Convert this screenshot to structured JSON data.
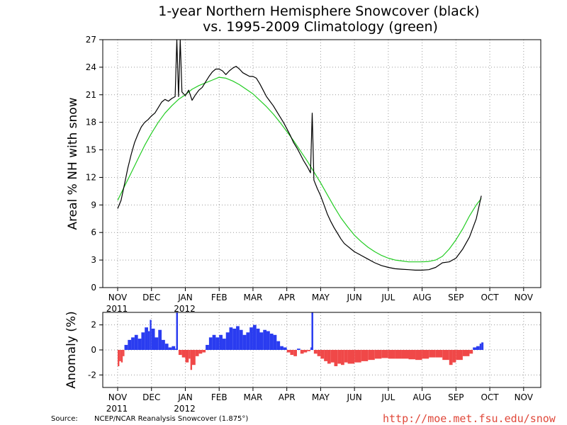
{
  "title_line1": "1-year Northern Hemisphere Snowcover (black)",
  "title_line2": "vs. 1995-2009 Climatology (green)",
  "source_label": "Source:",
  "source_text": "NCEP/NCAR Reanalysis Snowcover (1.875°)",
  "url": "http://moe.met.fsu.edu/snow",
  "colors": {
    "observed": "#000000",
    "climatology": "#22cc22",
    "positive": "#2a3cf0",
    "negative": "#f04848"
  },
  "chart_data": [
    {
      "type": "line",
      "name": "snowcover",
      "ylabel": "Areal % NH with snow",
      "xlabel": "",
      "ylim": [
        0,
        27
      ],
      "yticks": [
        0,
        3,
        6,
        9,
        12,
        15,
        18,
        21,
        24,
        27
      ],
      "grid": true,
      "x_axis": {
        "months": [
          "NOV",
          "DEC",
          "JAN",
          "FEB",
          "MAR",
          "APR",
          "MAY",
          "JUN",
          "JUL",
          "AUG",
          "SEP",
          "OCT",
          "NOV"
        ],
        "years": [
          {
            "month_index": 0,
            "label": "2011"
          },
          {
            "month_index": 2,
            "label": "2012"
          }
        ]
      },
      "series": [
        {
          "name": "observed",
          "points": [
            [
              0,
              8.6
            ],
            [
              0.1,
              9.5
            ],
            [
              0.2,
              11.2
            ],
            [
              0.3,
              13.0
            ],
            [
              0.4,
              14.5
            ],
            [
              0.5,
              15.8
            ],
            [
              0.6,
              16.7
            ],
            [
              0.7,
              17.5
            ],
            [
              0.8,
              18.0
            ],
            [
              0.9,
              18.3
            ],
            [
              1.0,
              18.7
            ],
            [
              1.1,
              19.0
            ],
            [
              1.2,
              19.6
            ],
            [
              1.3,
              20.2
            ],
            [
              1.4,
              20.5
            ],
            [
              1.5,
              20.3
            ],
            [
              1.6,
              20.6
            ],
            [
              1.7,
              20.8
            ],
            [
              1.75,
              27.0
            ],
            [
              1.8,
              20.8
            ],
            [
              1.85,
              27.0
            ],
            [
              1.9,
              21.3
            ],
            [
              2.0,
              20.9
            ],
            [
              2.1,
              21.5
            ],
            [
              2.2,
              20.4
            ],
            [
              2.3,
              21.0
            ],
            [
              2.4,
              21.5
            ],
            [
              2.5,
              21.8
            ],
            [
              2.6,
              22.4
            ],
            [
              2.7,
              23.0
            ],
            [
              2.8,
              23.5
            ],
            [
              2.9,
              23.8
            ],
            [
              3.0,
              23.8
            ],
            [
              3.1,
              23.6
            ],
            [
              3.2,
              23.2
            ],
            [
              3.3,
              23.6
            ],
            [
              3.4,
              23.9
            ],
            [
              3.5,
              24.1
            ],
            [
              3.6,
              23.8
            ],
            [
              3.7,
              23.4
            ],
            [
              3.8,
              23.2
            ],
            [
              3.9,
              23.0
            ],
            [
              4.0,
              23.0
            ],
            [
              4.1,
              22.8
            ],
            [
              4.2,
              22.2
            ],
            [
              4.3,
              21.5
            ],
            [
              4.4,
              20.8
            ],
            [
              4.5,
              20.3
            ],
            [
              4.6,
              19.8
            ],
            [
              4.7,
              19.2
            ],
            [
              4.8,
              18.6
            ],
            [
              4.9,
              18.0
            ],
            [
              5.0,
              17.3
            ],
            [
              5.1,
              16.6
            ],
            [
              5.2,
              15.8
            ],
            [
              5.3,
              15.2
            ],
            [
              5.4,
              14.5
            ],
            [
              5.5,
              13.8
            ],
            [
              5.6,
              13.2
            ],
            [
              5.7,
              12.5
            ],
            [
              5.75,
              19.0
            ],
            [
              5.8,
              11.7
            ],
            [
              5.9,
              10.8
            ],
            [
              6.0,
              10.0
            ],
            [
              6.1,
              9.0
            ],
            [
              6.2,
              8.0
            ],
            [
              6.3,
              7.2
            ],
            [
              6.4,
              6.5
            ],
            [
              6.5,
              5.9
            ],
            [
              6.6,
              5.3
            ],
            [
              6.7,
              4.8
            ],
            [
              6.8,
              4.5
            ],
            [
              6.9,
              4.2
            ],
            [
              7.0,
              3.9
            ],
            [
              7.2,
              3.5
            ],
            [
              7.4,
              3.1
            ],
            [
              7.6,
              2.7
            ],
            [
              7.8,
              2.4
            ],
            [
              8.0,
              2.2
            ],
            [
              8.2,
              2.05
            ],
            [
              8.4,
              2.0
            ],
            [
              8.6,
              1.95
            ],
            [
              8.8,
              1.9
            ],
            [
              9.0,
              1.9
            ],
            [
              9.2,
              1.95
            ],
            [
              9.4,
              2.2
            ],
            [
              9.6,
              2.7
            ],
            [
              9.8,
              2.8
            ],
            [
              10.0,
              3.2
            ],
            [
              10.2,
              4.2
            ],
            [
              10.4,
              5.5
            ],
            [
              10.6,
              7.5
            ],
            [
              10.75,
              10.0
            ]
          ]
        },
        {
          "name": "climatology",
          "points": [
            [
              0,
              9.5
            ],
            [
              0.2,
              11.0
            ],
            [
              0.4,
              12.5
            ],
            [
              0.6,
              14.0
            ],
            [
              0.8,
              15.5
            ],
            [
              1.0,
              16.8
            ],
            [
              1.2,
              18.0
            ],
            [
              1.4,
              19.0
            ],
            [
              1.6,
              19.8
            ],
            [
              1.8,
              20.5
            ],
            [
              2.0,
              21.0
            ],
            [
              2.2,
              21.6
            ],
            [
              2.4,
              22.0
            ],
            [
              2.6,
              22.3
            ],
            [
              2.8,
              22.6
            ],
            [
              3.0,
              22.9
            ],
            [
              3.2,
              22.8
            ],
            [
              3.4,
              22.5
            ],
            [
              3.6,
              22.1
            ],
            [
              3.8,
              21.6
            ],
            [
              4.0,
              21.1
            ],
            [
              4.2,
              20.4
            ],
            [
              4.4,
              19.7
            ],
            [
              4.6,
              18.9
            ],
            [
              4.8,
              18.0
            ],
            [
              5.0,
              17.0
            ],
            [
              5.2,
              16.0
            ],
            [
              5.4,
              14.9
            ],
            [
              5.6,
              13.8
            ],
            [
              5.8,
              12.6
            ],
            [
              6.0,
              11.4
            ],
            [
              6.2,
              10.1
            ],
            [
              6.4,
              8.8
            ],
            [
              6.6,
              7.6
            ],
            [
              6.8,
              6.6
            ],
            [
              7.0,
              5.7
            ],
            [
              7.2,
              5.0
            ],
            [
              7.4,
              4.4
            ],
            [
              7.6,
              3.9
            ],
            [
              7.8,
              3.5
            ],
            [
              8.0,
              3.2
            ],
            [
              8.2,
              3.0
            ],
            [
              8.4,
              2.9
            ],
            [
              8.6,
              2.8
            ],
            [
              8.8,
              2.8
            ],
            [
              9.0,
              2.8
            ],
            [
              9.2,
              2.85
            ],
            [
              9.4,
              3.0
            ],
            [
              9.6,
              3.4
            ],
            [
              9.8,
              4.2
            ],
            [
              10.0,
              5.2
            ],
            [
              10.2,
              6.4
            ],
            [
              10.4,
              7.8
            ],
            [
              10.6,
              9.0
            ],
            [
              10.75,
              9.7
            ]
          ]
        }
      ]
    },
    {
      "type": "area",
      "name": "anomaly",
      "ylabel": "Anomaly (%)",
      "xlabel": "",
      "ylim": [
        -3,
        3
      ],
      "yticks": [
        -2,
        0,
        2
      ],
      "grid": true,
      "x_axis": {
        "months": [
          "NOV",
          "DEC",
          "JAN",
          "FEB",
          "MAR",
          "APR",
          "MAY",
          "JUN",
          "JUL",
          "AUG",
          "SEP",
          "OCT",
          "NOV"
        ],
        "years": [
          {
            "month_index": 0,
            "label": "2011"
          },
          {
            "month_index": 2,
            "label": "2012"
          }
        ]
      },
      "series": [
        {
          "name": "anomaly",
          "points": [
            [
              0,
              -1.3
            ],
            [
              0.05,
              -0.9
            ],
            [
              0.1,
              -1.0
            ],
            [
              0.15,
              -0.5
            ],
            [
              0.2,
              0.4
            ],
            [
              0.3,
              0.8
            ],
            [
              0.4,
              1.0
            ],
            [
              0.5,
              1.2
            ],
            [
              0.6,
              0.9
            ],
            [
              0.7,
              1.4
            ],
            [
              0.8,
              1.8
            ],
            [
              0.9,
              1.5
            ],
            [
              0.95,
              2.4
            ],
            [
              1.0,
              1.7
            ],
            [
              1.1,
              1.0
            ],
            [
              1.2,
              1.6
            ],
            [
              1.3,
              0.8
            ],
            [
              1.4,
              0.5
            ],
            [
              1.5,
              0.2
            ],
            [
              1.6,
              0.3
            ],
            [
              1.7,
              0.1
            ],
            [
              1.75,
              3.0
            ],
            [
              1.8,
              -0.4
            ],
            [
              1.9,
              -0.6
            ],
            [
              2.0,
              -1.0
            ],
            [
              2.1,
              -0.7
            ],
            [
              2.15,
              -1.6
            ],
            [
              2.2,
              -1.2
            ],
            [
              2.3,
              -0.5
            ],
            [
              2.4,
              -0.3
            ],
            [
              2.5,
              -0.2
            ],
            [
              2.6,
              0.4
            ],
            [
              2.7,
              1.0
            ],
            [
              2.8,
              1.2
            ],
            [
              2.9,
              1.0
            ],
            [
              3.0,
              1.2
            ],
            [
              3.1,
              0.9
            ],
            [
              3.2,
              1.4
            ],
            [
              3.3,
              1.8
            ],
            [
              3.4,
              1.7
            ],
            [
              3.5,
              1.9
            ],
            [
              3.6,
              1.6
            ],
            [
              3.7,
              1.2
            ],
            [
              3.8,
              1.4
            ],
            [
              3.9,
              1.8
            ],
            [
              4.0,
              2.0
            ],
            [
              4.1,
              1.7
            ],
            [
              4.2,
              1.4
            ],
            [
              4.3,
              1.6
            ],
            [
              4.4,
              1.5
            ],
            [
              4.5,
              1.3
            ],
            [
              4.6,
              1.2
            ],
            [
              4.7,
              0.7
            ],
            [
              4.8,
              0.3
            ],
            [
              4.9,
              0.2
            ],
            [
              5.0,
              -0.2
            ],
            [
              5.1,
              -0.4
            ],
            [
              5.2,
              -0.5
            ],
            [
              5.3,
              0.1
            ],
            [
              5.4,
              -0.3
            ],
            [
              5.5,
              -0.2
            ],
            [
              5.6,
              -0.1
            ],
            [
              5.7,
              0.2
            ],
            [
              5.75,
              3.0
            ],
            [
              5.8,
              -0.3
            ],
            [
              5.9,
              -0.5
            ],
            [
              6.0,
              -0.7
            ],
            [
              6.1,
              -0.9
            ],
            [
              6.2,
              -1.1
            ],
            [
              6.3,
              -1.0
            ],
            [
              6.4,
              -1.3
            ],
            [
              6.5,
              -1.1
            ],
            [
              6.6,
              -1.2
            ],
            [
              6.7,
              -1.0
            ],
            [
              6.8,
              -1.1
            ],
            [
              7.0,
              -1.0
            ],
            [
              7.2,
              -0.9
            ],
            [
              7.4,
              -0.8
            ],
            [
              7.6,
              -0.7
            ],
            [
              7.8,
              -0.65
            ],
            [
              8.0,
              -0.7
            ],
            [
              8.2,
              -0.7
            ],
            [
              8.4,
              -0.7
            ],
            [
              8.6,
              -0.75
            ],
            [
              8.8,
              -0.8
            ],
            [
              9.0,
              -0.7
            ],
            [
              9.2,
              -0.6
            ],
            [
              9.4,
              -0.6
            ],
            [
              9.6,
              -0.8
            ],
            [
              9.8,
              -1.2
            ],
            [
              9.9,
              -1.0
            ],
            [
              10.0,
              -0.8
            ],
            [
              10.2,
              -0.5
            ],
            [
              10.4,
              -0.3
            ],
            [
              10.5,
              0.2
            ],
            [
              10.6,
              0.3
            ],
            [
              10.7,
              0.5
            ],
            [
              10.75,
              0.6
            ]
          ]
        }
      ]
    }
  ]
}
